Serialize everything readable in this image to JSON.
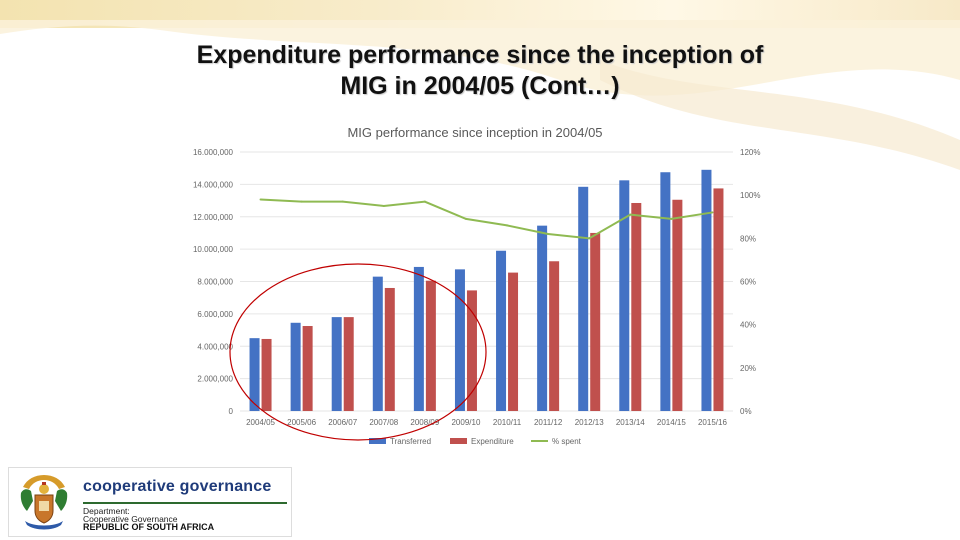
{
  "slide": {
    "title_line1": "Expenditure performance since the inception of",
    "title_line2": "MIG in 2004/05   (Cont…)"
  },
  "colors": {
    "transferred": "#4472c4",
    "expenditure": "#c0504d",
    "pct_spent": "#8fba52",
    "highlight_ellipse": "#c00000",
    "gridline": "#e6e6e6",
    "axis_text": "#666666"
  },
  "chart_data": {
    "type": "bar",
    "title": "MIG performance  since inception in 2004/05",
    "categories": [
      "2004/05",
      "2005/06",
      "2006/07",
      "2007/08",
      "2008/09",
      "2009/10",
      "2010/11",
      "2011/12",
      "2012/13",
      "2013/14",
      "2014/15",
      "2015/16"
    ],
    "series": [
      {
        "name": "Transferred",
        "type": "bar",
        "axis": "left",
        "values": [
          4500000,
          5450000,
          5800000,
          8300000,
          8900000,
          8750000,
          9900000,
          11450000,
          13850000,
          14250000,
          14750000,
          14900000
        ]
      },
      {
        "name": "Expenditure",
        "type": "bar",
        "axis": "left",
        "values": [
          4450000,
          5250000,
          5800000,
          7600000,
          8050000,
          7450000,
          8550000,
          9250000,
          11000000,
          12850000,
          13050000,
          13750000
        ]
      },
      {
        "name": "% spent",
        "type": "line",
        "axis": "right",
        "values": [
          98,
          97,
          97,
          95,
          97,
          89,
          86,
          82,
          80,
          91,
          89,
          92
        ]
      }
    ],
    "y_left": {
      "min": 0,
      "max": 16000000,
      "ticks": [
        "0",
        "2.000,000",
        "4.000,000",
        "6.000,000",
        "8.000,000",
        "10.000,000",
        "12.000,000",
        "14.000,000",
        "16.000,000"
      ]
    },
    "y_right": {
      "min": 0,
      "max": 120,
      "ticks": [
        "0%",
        "20%",
        "40%",
        "60%",
        "80%",
        "100%",
        "120%"
      ]
    },
    "legend": {
      "position": "bottom",
      "entries": [
        "Transferred",
        "Expenditure",
        "% spent"
      ]
    },
    "gridlines": true,
    "annotation": "ellipse highlighting 2004/05 to 2009/10"
  },
  "logo": {
    "title": "cooperative governance",
    "line1": "Department:",
    "line2": "Cooperative Governance",
    "line3": "REPUBLIC OF SOUTH AFRICA",
    "crest_icon": "coat-of-arms-icon"
  }
}
